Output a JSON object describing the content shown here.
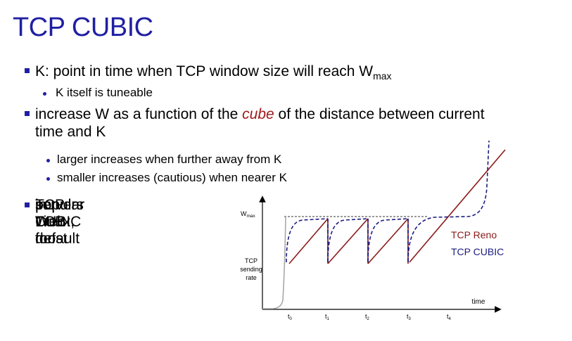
{
  "slide": {
    "title": "TCP CUBIC",
    "bullets": {
      "b1_text": "K: point in time when TCP window size will reach W",
      "b1_sub": "max",
      "b1_1": "K itself is tuneable",
      "b2_before": "increase W as a function of the ",
      "b2_emph": "cube",
      "b2_after": " of the distance between current",
      "b2_line2": "time  and K",
      "b2_1": "larger increases when further away from K",
      "b2_2": "smaller increases (cautious) when nearer K",
      "b3_lines": [
        "TCP CUBIC default",
        "in Linux, most",
        "popular TCP for",
        "popular Web",
        "servers"
      ]
    }
  },
  "graph": {
    "y_label_wmax": "W",
    "y_label_wmax_sub": "max",
    "y_label_lines": [
      "TCP",
      "sending",
      "rate"
    ],
    "x_label": "time",
    "ticks": [
      {
        "t": "t",
        "s": "0"
      },
      {
        "t": "t",
        "s": "1"
      },
      {
        "t": "t",
        "s": "2"
      },
      {
        "t": "t",
        "s": "3"
      },
      {
        "t": "t",
        "s": "4"
      }
    ],
    "legend": [
      {
        "name": "TCP Reno",
        "color": "#8b1a1a"
      },
      {
        "name": "TCP CUBIC",
        "color": "#1c1c80"
      }
    ],
    "colors": {
      "reno": "#8b1a1a",
      "cubic": "#1c1c80",
      "slowstart": "#a8a8a8",
      "axis": "#000000"
    }
  }
}
